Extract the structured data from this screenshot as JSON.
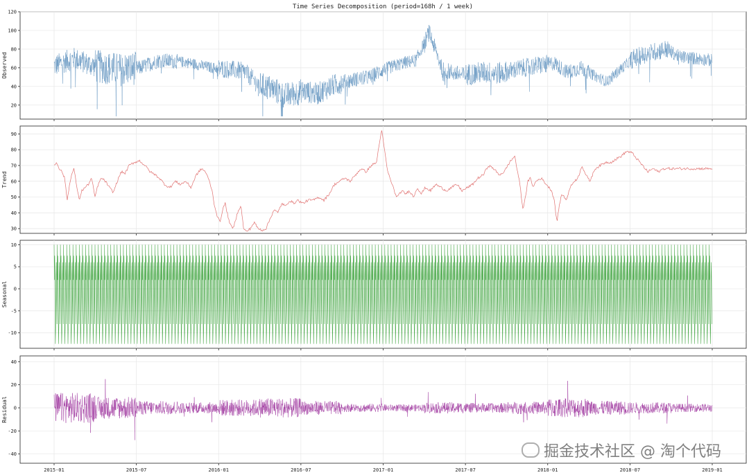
{
  "chart_data": {
    "title": "Time Series Decomposition (period=168h / 1 week)",
    "x_ticks": [
      "2015-01",
      "2015-07",
      "2016-01",
      "2016-07",
      "2017-01",
      "2017-07",
      "2018-01",
      "2018-07",
      "2019-01"
    ],
    "x_range": [
      "2015-01",
      "2019-01"
    ],
    "grid": true,
    "panels": [
      {
        "ylabel": "Observed",
        "type": "line",
        "color": "#5b8fbd",
        "yticks": [
          20,
          40,
          60,
          80,
          100,
          120
        ],
        "ylim": [
          5,
          120
        ],
        "trend_points": [
          [
            0,
            62
          ],
          [
            0.03,
            70
          ],
          [
            0.06,
            62
          ],
          [
            0.1,
            58
          ],
          [
            0.13,
            60
          ],
          [
            0.16,
            68
          ],
          [
            0.2,
            66
          ],
          [
            0.24,
            60
          ],
          [
            0.27,
            58
          ],
          [
            0.29,
            56
          ],
          [
            0.31,
            42
          ],
          [
            0.33,
            38
          ],
          [
            0.35,
            30
          ],
          [
            0.38,
            35
          ],
          [
            0.4,
            32
          ],
          [
            0.42,
            40
          ],
          [
            0.44,
            45
          ],
          [
            0.46,
            48
          ],
          [
            0.48,
            50
          ],
          [
            0.5,
            58
          ],
          [
            0.53,
            65
          ],
          [
            0.55,
            68
          ],
          [
            0.57,
            98
          ],
          [
            0.59,
            58
          ],
          [
            0.62,
            52
          ],
          [
            0.65,
            55
          ],
          [
            0.68,
            54
          ],
          [
            0.7,
            58
          ],
          [
            0.73,
            62
          ],
          [
            0.76,
            65
          ],
          [
            0.78,
            55
          ],
          [
            0.8,
            60
          ],
          [
            0.82,
            52
          ],
          [
            0.84,
            45
          ],
          [
            0.86,
            58
          ],
          [
            0.88,
            70
          ],
          [
            0.9,
            75
          ],
          [
            0.93,
            80
          ],
          [
            0.95,
            72
          ],
          [
            1.0,
            68
          ]
        ],
        "noise": [
          12,
          18,
          8,
          6,
          10,
          14,
          12,
          8,
          7,
          9,
          12,
          10,
          8,
          6,
          10,
          7
        ]
      },
      {
        "ylabel": "Trend",
        "type": "line",
        "color": "#e0706f",
        "yticks": [
          30,
          40,
          50,
          60,
          70,
          80,
          90
        ],
        "ylim": [
          27,
          95
        ],
        "points": [
          [
            0.0,
            70
          ],
          [
            0.004,
            72
          ],
          [
            0.008,
            68
          ],
          [
            0.012,
            66
          ],
          [
            0.016,
            62
          ],
          [
            0.02,
            48
          ],
          [
            0.025,
            62
          ],
          [
            0.03,
            68
          ],
          [
            0.034,
            58
          ],
          [
            0.038,
            48
          ],
          [
            0.042,
            54
          ],
          [
            0.047,
            56
          ],
          [
            0.052,
            58
          ],
          [
            0.057,
            62
          ],
          [
            0.062,
            50
          ],
          [
            0.067,
            58
          ],
          [
            0.072,
            62
          ],
          [
            0.078,
            60
          ],
          [
            0.084,
            56
          ],
          [
            0.09,
            53
          ],
          [
            0.096,
            60
          ],
          [
            0.102,
            66
          ],
          [
            0.108,
            65
          ],
          [
            0.114,
            70
          ],
          [
            0.122,
            72
          ],
          [
            0.13,
            73
          ],
          [
            0.138,
            70
          ],
          [
            0.146,
            66
          ],
          [
            0.154,
            64
          ],
          [
            0.16,
            62
          ],
          [
            0.168,
            58
          ],
          [
            0.176,
            56
          ],
          [
            0.184,
            60
          ],
          [
            0.192,
            58
          ],
          [
            0.2,
            60
          ],
          [
            0.208,
            56
          ],
          [
            0.216,
            64
          ],
          [
            0.224,
            68
          ],
          [
            0.23,
            66
          ],
          [
            0.236,
            60
          ],
          [
            0.24,
            54
          ],
          [
            0.244,
            44
          ],
          [
            0.248,
            38
          ],
          [
            0.252,
            34
          ],
          [
            0.256,
            42
          ],
          [
            0.26,
            46
          ],
          [
            0.264,
            38
          ],
          [
            0.268,
            32
          ],
          [
            0.272,
            30
          ],
          [
            0.276,
            36
          ],
          [
            0.28,
            42
          ],
          [
            0.284,
            44
          ],
          [
            0.288,
            30
          ],
          [
            0.292,
            28
          ],
          [
            0.298,
            30
          ],
          [
            0.304,
            34
          ],
          [
            0.31,
            30
          ],
          [
            0.316,
            29
          ],
          [
            0.322,
            30
          ],
          [
            0.328,
            36
          ],
          [
            0.334,
            42
          ],
          [
            0.34,
            40
          ],
          [
            0.346,
            46
          ],
          [
            0.352,
            44
          ],
          [
            0.358,
            48
          ],
          [
            0.364,
            46
          ],
          [
            0.37,
            48
          ],
          [
            0.378,
            46
          ],
          [
            0.386,
            48
          ],
          [
            0.394,
            48
          ],
          [
            0.402,
            50
          ],
          [
            0.41,
            48
          ],
          [
            0.418,
            52
          ],
          [
            0.426,
            58
          ],
          [
            0.434,
            60
          ],
          [
            0.442,
            62
          ],
          [
            0.45,
            60
          ],
          [
            0.458,
            64
          ],
          [
            0.466,
            68
          ],
          [
            0.474,
            66
          ],
          [
            0.482,
            70
          ],
          [
            0.49,
            72
          ],
          [
            0.494,
            84
          ],
          [
            0.498,
            92
          ],
          [
            0.502,
            80
          ],
          [
            0.506,
            68
          ],
          [
            0.51,
            62
          ],
          [
            0.514,
            58
          ],
          [
            0.518,
            52
          ],
          [
            0.522,
            50
          ],
          [
            0.528,
            54
          ],
          [
            0.534,
            52
          ],
          [
            0.54,
            54
          ],
          [
            0.546,
            50
          ],
          [
            0.552,
            56
          ],
          [
            0.558,
            52
          ],
          [
            0.564,
            56
          ],
          [
            0.572,
            54
          ],
          [
            0.58,
            58
          ],
          [
            0.588,
            56
          ],
          [
            0.596,
            54
          ],
          [
            0.604,
            56
          ],
          [
            0.612,
            58
          ],
          [
            0.62,
            54
          ],
          [
            0.628,
            56
          ],
          [
            0.636,
            58
          ],
          [
            0.644,
            62
          ],
          [
            0.652,
            64
          ],
          [
            0.66,
            70
          ],
          [
            0.668,
            68
          ],
          [
            0.676,
            64
          ],
          [
            0.684,
            66
          ],
          [
            0.692,
            72
          ],
          [
            0.7,
            76
          ],
          [
            0.704,
            66
          ],
          [
            0.708,
            58
          ],
          [
            0.712,
            42
          ],
          [
            0.716,
            50
          ],
          [
            0.72,
            60
          ],
          [
            0.724,
            62
          ],
          [
            0.728,
            56
          ],
          [
            0.732,
            60
          ],
          [
            0.74,
            62
          ],
          [
            0.748,
            58
          ],
          [
            0.756,
            54
          ],
          [
            0.76,
            48
          ],
          [
            0.764,
            34
          ],
          [
            0.768,
            46
          ],
          [
            0.772,
            52
          ],
          [
            0.778,
            48
          ],
          [
            0.784,
            56
          ],
          [
            0.79,
            60
          ],
          [
            0.796,
            62
          ],
          [
            0.802,
            70
          ],
          [
            0.808,
            64
          ],
          [
            0.814,
            60
          ],
          [
            0.822,
            68
          ],
          [
            0.83,
            70
          ],
          [
            0.838,
            72
          ],
          [
            0.846,
            72
          ],
          [
            0.854,
            74
          ],
          [
            0.862,
            76
          ],
          [
            0.87,
            79
          ],
          [
            0.878,
            78
          ],
          [
            0.886,
            74
          ],
          [
            0.894,
            70
          ],
          [
            0.902,
            66
          ],
          [
            0.91,
            68
          ],
          [
            0.918,
            66
          ],
          [
            0.926,
            68
          ],
          [
            0.934,
            68
          ],
          [
            0.942,
            68
          ],
          [
            1.0,
            68
          ]
        ]
      },
      {
        "ylabel": "Seasonal",
        "type": "line",
        "color": "#2a9a2a",
        "yticks": [
          -10,
          -5,
          0,
          5,
          10
        ],
        "ylim": [
          -13.5,
          11
        ],
        "period_count": 209,
        "amplitude_high": 10,
        "amplitude_low": -12.5
      },
      {
        "ylabel": "Residual",
        "type": "line",
        "color": "#9b2f9b",
        "yticks": [
          -40,
          -20,
          0,
          20,
          40
        ],
        "ylim": [
          -48,
          45
        ],
        "noise": [
          22,
          16,
          10,
          8,
          12,
          14,
          10,
          6,
          5,
          8,
          7,
          9,
          14,
          10,
          8,
          6
        ]
      }
    ]
  },
  "watermark": "掘金技术社区 @ 淘个代码"
}
